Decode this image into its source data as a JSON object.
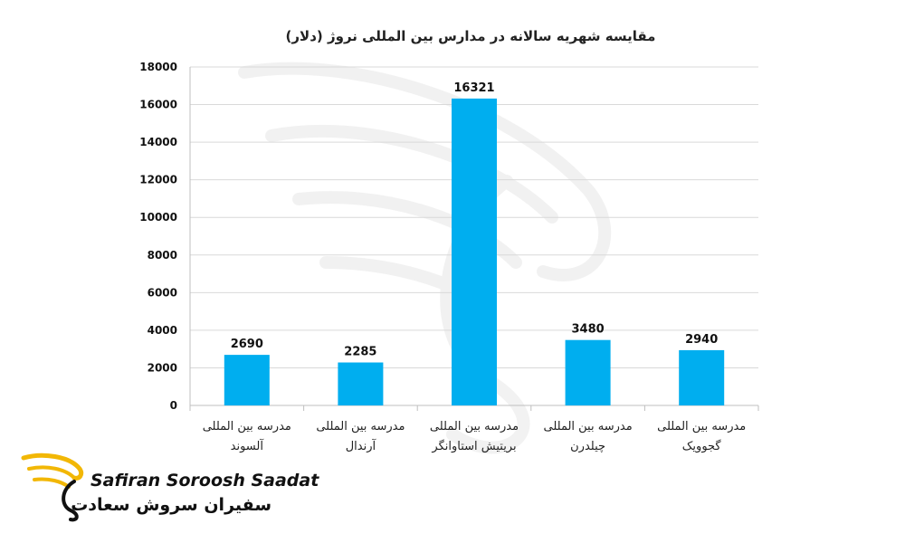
{
  "chart_data": {
    "type": "bar",
    "title": "مقایسه شهریه سالانه در مدارس بین المللی نروژ (دلار)",
    "xlabel": "",
    "ylabel": "",
    "ylim": [
      0,
      18000
    ],
    "yticks": [
      0,
      2000,
      4000,
      6000,
      8000,
      10000,
      12000,
      14000,
      16000,
      18000
    ],
    "grid": true,
    "legend": "none",
    "categories": [
      [
        "مدرسه بین المللی",
        "آلسوند"
      ],
      [
        "مدرسه بین المللی",
        "آرندال"
      ],
      [
        "مدرسه بین المللی",
        "بریتیش استاوانگر"
      ],
      [
        "مدرسه بین المللی",
        "چیلدرن"
      ],
      [
        "مدرسه بین المللی",
        "گجوویک"
      ]
    ],
    "values": [
      2690,
      2285,
      16321,
      3480,
      2940
    ],
    "data_labels": [
      "2690",
      "2285",
      "16321",
      "3480",
      "2940"
    ],
    "bar_color": "#00aeef",
    "grid_color": "#d9d9d9",
    "axis_color": "#bfbfbf"
  },
  "brand": {
    "name_en": "Safiran Soroosh Saadat",
    "name_fa": "سفیران سروش سعادت",
    "accent_color": "#f2b705"
  }
}
